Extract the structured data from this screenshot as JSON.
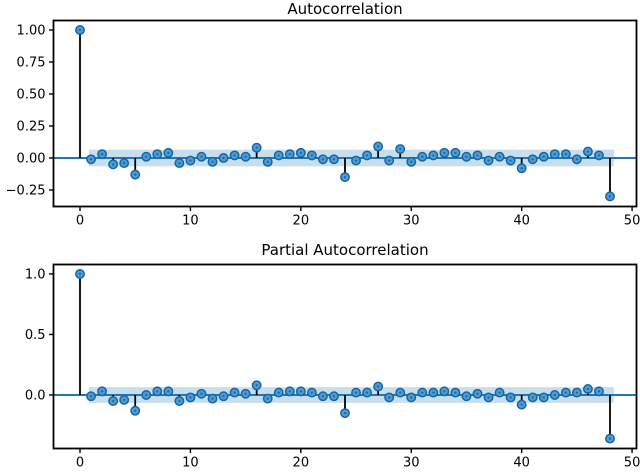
{
  "figure": {
    "background": "#ffffff"
  },
  "colors": {
    "marker_fill": "#4f9bd5",
    "marker_edge": "#1766a0",
    "marker_center_dot": "#1766a0",
    "stem": "#000000",
    "zero_line": "#1f77b4",
    "confidence_band": "rgba(31,119,180,0.24)",
    "spine": "#000000",
    "tick_text": "#000000"
  },
  "chart_data": [
    {
      "type": "stem",
      "title": "Autocorrelation",
      "xlabel": "",
      "ylabel": "",
      "x": [
        0,
        1,
        2,
        3,
        4,
        5,
        6,
        7,
        8,
        9,
        10,
        11,
        12,
        13,
        14,
        15,
        16,
        17,
        18,
        19,
        20,
        21,
        22,
        23,
        24,
        25,
        26,
        27,
        28,
        29,
        30,
        31,
        32,
        33,
        34,
        35,
        36,
        37,
        38,
        39,
        40,
        41,
        42,
        43,
        44,
        45,
        46,
        47,
        48
      ],
      "values": [
        1.0,
        -0.01,
        0.03,
        -0.05,
        -0.04,
        -0.13,
        0.01,
        0.03,
        0.04,
        -0.04,
        -0.02,
        0.01,
        -0.03,
        0.0,
        0.02,
        0.01,
        0.08,
        -0.03,
        0.02,
        0.03,
        0.04,
        0.02,
        -0.01,
        -0.01,
        -0.15,
        -0.02,
        0.02,
        0.09,
        -0.02,
        0.07,
        -0.03,
        0.01,
        0.02,
        0.04,
        0.04,
        0.01,
        0.02,
        -0.02,
        0.01,
        -0.02,
        -0.08,
        -0.01,
        0.01,
        0.03,
        0.03,
        -0.01,
        0.05,
        0.02,
        -0.3
      ],
      "xticks": [
        0,
        10,
        20,
        30,
        40,
        50
      ],
      "xtick_labels": [
        "0",
        "10",
        "20",
        "30",
        "40",
        "50"
      ],
      "yticks": [
        -0.25,
        0.0,
        0.25,
        0.5,
        0.75,
        1.0
      ],
      "ytick_labels": [
        "−0.25",
        "0.00",
        "0.25",
        "0.50",
        "0.75",
        "1.00"
      ],
      "xlim": [
        -2.4,
        50.4
      ],
      "ylim": [
        -0.379,
        1.074
      ],
      "baseline": 0,
      "confidence_band": {
        "low": -0.065,
        "high": 0.065,
        "x_start": 0.8,
        "x_end": 48.35
      },
      "grid": false,
      "legend": null
    },
    {
      "type": "stem",
      "title": "Partial Autocorrelation",
      "xlabel": "",
      "ylabel": "",
      "x": [
        0,
        1,
        2,
        3,
        4,
        5,
        6,
        7,
        8,
        9,
        10,
        11,
        12,
        13,
        14,
        15,
        16,
        17,
        18,
        19,
        20,
        21,
        22,
        23,
        24,
        25,
        26,
        27,
        28,
        29,
        30,
        31,
        32,
        33,
        34,
        35,
        36,
        37,
        38,
        39,
        40,
        41,
        42,
        43,
        44,
        45,
        46,
        47,
        48
      ],
      "values": [
        1.0,
        -0.01,
        0.03,
        -0.05,
        -0.04,
        -0.13,
        0.0,
        0.03,
        0.03,
        -0.05,
        -0.02,
        0.01,
        -0.03,
        -0.01,
        0.02,
        0.01,
        0.08,
        -0.03,
        0.02,
        0.03,
        0.03,
        0.02,
        -0.01,
        -0.01,
        -0.15,
        0.02,
        0.02,
        0.07,
        -0.02,
        0.02,
        -0.02,
        0.02,
        0.02,
        0.03,
        0.02,
        -0.01,
        0.01,
        -0.02,
        0.02,
        -0.02,
        -0.08,
        -0.02,
        -0.02,
        0.0,
        0.02,
        0.02,
        0.05,
        0.03,
        -0.36
      ],
      "xticks": [
        0,
        10,
        20,
        30,
        40,
        50
      ],
      "xtick_labels": [
        "0",
        "10",
        "20",
        "30",
        "40",
        "50"
      ],
      "yticks": [
        0.0,
        0.5,
        1.0
      ],
      "ytick_labels": [
        "0.0",
        "0.5",
        "1.0"
      ],
      "xlim": [
        -2.4,
        50.4
      ],
      "ylim": [
        -0.442,
        1.078
      ],
      "baseline": 0,
      "confidence_band": {
        "low": -0.065,
        "high": 0.065,
        "x_start": 0.8,
        "x_end": 48.35
      },
      "grid": false,
      "legend": null
    }
  ]
}
